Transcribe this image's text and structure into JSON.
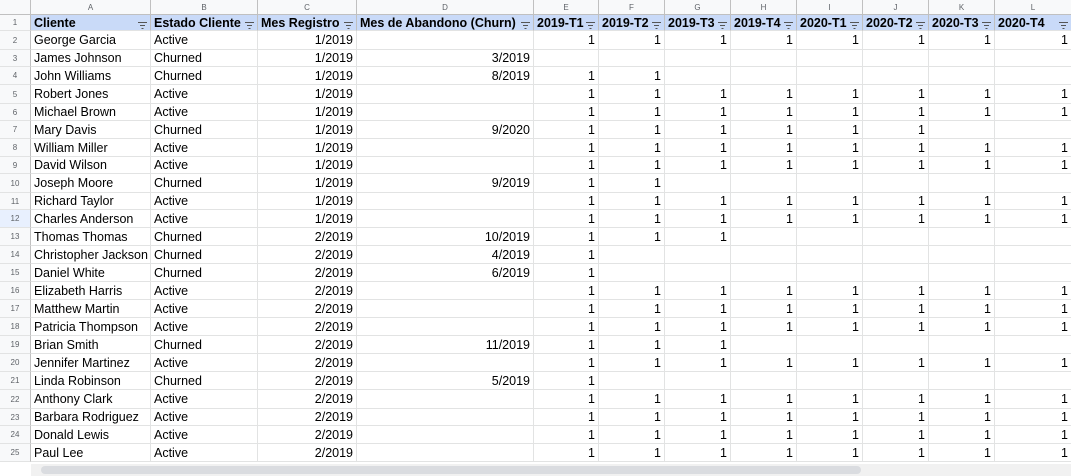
{
  "column_letters": [
    "A",
    "B",
    "C",
    "D",
    "E",
    "F",
    "G",
    "H",
    "I",
    "J",
    "K",
    "L"
  ],
  "headers": [
    "Cliente",
    "Estado Cliente",
    "Mes Registro",
    "Mes de Abandono (Churn)",
    "2019-T1",
    "2019-T2",
    "2019-T3",
    "2019-T4",
    "2020-T1",
    "2020-T2",
    "2020-T3",
    "2020-T4"
  ],
  "rows": [
    {
      "n": "2",
      "c": [
        "George Garcia",
        "Active",
        "1/2019",
        "",
        "1",
        "1",
        "1",
        "1",
        "1",
        "1",
        "1",
        "1"
      ]
    },
    {
      "n": "3",
      "c": [
        "James Johnson",
        "Churned",
        "1/2019",
        "3/2019",
        "",
        "",
        "",
        "",
        "",
        "",
        "",
        ""
      ]
    },
    {
      "n": "4",
      "c": [
        "John Williams",
        "Churned",
        "1/2019",
        "8/2019",
        "1",
        "1",
        "",
        "",
        "",
        "",
        "",
        ""
      ]
    },
    {
      "n": "5",
      "c": [
        "Robert Jones",
        "Active",
        "1/2019",
        "",
        "1",
        "1",
        "1",
        "1",
        "1",
        "1",
        "1",
        "1"
      ]
    },
    {
      "n": "6",
      "c": [
        "Michael Brown",
        "Active",
        "1/2019",
        "",
        "1",
        "1",
        "1",
        "1",
        "1",
        "1",
        "1",
        "1"
      ]
    },
    {
      "n": "7",
      "c": [
        "Mary Davis",
        "Churned",
        "1/2019",
        "9/2020",
        "1",
        "1",
        "1",
        "1",
        "1",
        "1",
        "",
        ""
      ]
    },
    {
      "n": "8",
      "c": [
        "William Miller",
        "Active",
        "1/2019",
        "",
        "1",
        "1",
        "1",
        "1",
        "1",
        "1",
        "1",
        "1"
      ]
    },
    {
      "n": "9",
      "c": [
        "David Wilson",
        "Active",
        "1/2019",
        "",
        "1",
        "1",
        "1",
        "1",
        "1",
        "1",
        "1",
        "1"
      ]
    },
    {
      "n": "10",
      "c": [
        "Joseph Moore",
        "Churned",
        "1/2019",
        "9/2019",
        "1",
        "1",
        "",
        "",
        "",
        "",
        "",
        ""
      ]
    },
    {
      "n": "11",
      "c": [
        "Richard Taylor",
        "Active",
        "1/2019",
        "",
        "1",
        "1",
        "1",
        "1",
        "1",
        "1",
        "1",
        "1"
      ]
    },
    {
      "n": "12",
      "c": [
        "Charles Anderson",
        "Active",
        "1/2019",
        "",
        "1",
        "1",
        "1",
        "1",
        "1",
        "1",
        "1",
        "1"
      ]
    },
    {
      "n": "13",
      "c": [
        "Thomas Thomas",
        "Churned",
        "2/2019",
        "10/2019",
        "1",
        "1",
        "1",
        "",
        "",
        "",
        "",
        ""
      ]
    },
    {
      "n": "14",
      "c": [
        "Christopher Jackson",
        "Churned",
        "2/2019",
        "4/2019",
        "1",
        "",
        "",
        "",
        "",
        "",
        "",
        ""
      ]
    },
    {
      "n": "15",
      "c": [
        "Daniel White",
        "Churned",
        "2/2019",
        "6/2019",
        "1",
        "",
        "",
        "",
        "",
        "",
        "",
        ""
      ]
    },
    {
      "n": "16",
      "c": [
        "Elizabeth Harris",
        "Active",
        "2/2019",
        "",
        "1",
        "1",
        "1",
        "1",
        "1",
        "1",
        "1",
        "1"
      ]
    },
    {
      "n": "17",
      "c": [
        "Matthew Martin",
        "Active",
        "2/2019",
        "",
        "1",
        "1",
        "1",
        "1",
        "1",
        "1",
        "1",
        "1"
      ]
    },
    {
      "n": "18",
      "c": [
        "Patricia Thompson",
        "Active",
        "2/2019",
        "",
        "1",
        "1",
        "1",
        "1",
        "1",
        "1",
        "1",
        "1"
      ]
    },
    {
      "n": "19",
      "c": [
        "Brian Smith",
        "Churned",
        "2/2019",
        "11/2019",
        "1",
        "1",
        "1",
        "",
        "",
        "",
        "",
        ""
      ]
    },
    {
      "n": "20",
      "c": [
        "Jennifer Martinez",
        "Active",
        "2/2019",
        "",
        "1",
        "1",
        "1",
        "1",
        "1",
        "1",
        "1",
        "1"
      ]
    },
    {
      "n": "21",
      "c": [
        "Linda Robinson",
        "Churned",
        "2/2019",
        "5/2019",
        "1",
        "",
        "",
        "",
        "",
        "",
        "",
        ""
      ]
    },
    {
      "n": "22",
      "c": [
        "Anthony Clark",
        "Active",
        "2/2019",
        "",
        "1",
        "1",
        "1",
        "1",
        "1",
        "1",
        "1",
        "1"
      ]
    },
    {
      "n": "23",
      "c": [
        "Barbara Rodriguez",
        "Active",
        "2/2019",
        "",
        "1",
        "1",
        "1",
        "1",
        "1",
        "1",
        "1",
        "1"
      ]
    },
    {
      "n": "24",
      "c": [
        "Donald Lewis",
        "Active",
        "2/2019",
        "",
        "1",
        "1",
        "1",
        "1",
        "1",
        "1",
        "1",
        "1"
      ]
    },
    {
      "n": "25",
      "c": [
        "Paul Lee",
        "Active",
        "2/2019",
        "",
        "1",
        "1",
        "1",
        "1",
        "1",
        "1",
        "1",
        "1"
      ]
    }
  ],
  "selected_row": "12",
  "filter_icon": "filter-icon",
  "header_fill_color": "#c9daf8"
}
